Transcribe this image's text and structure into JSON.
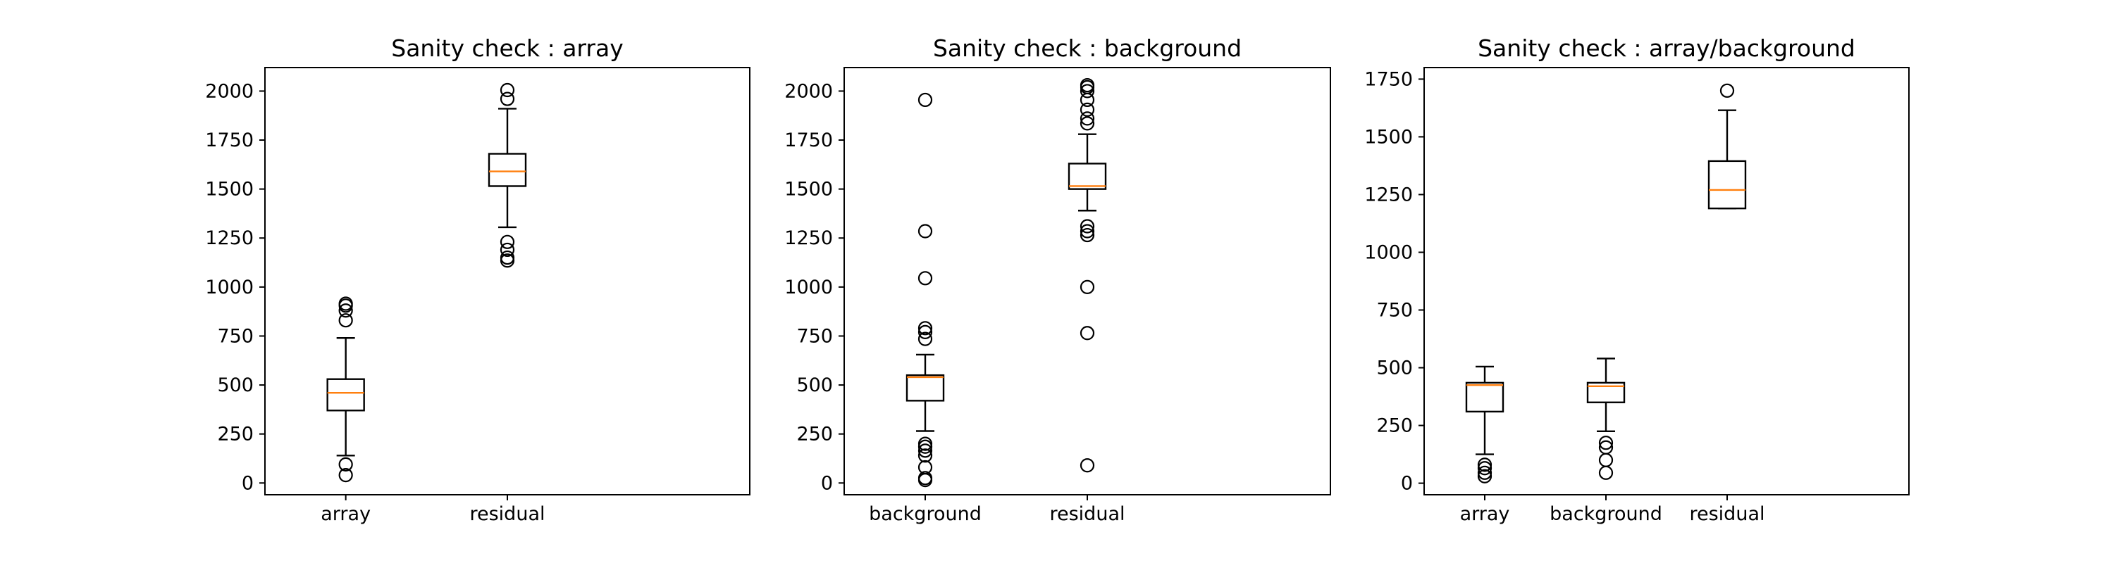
{
  "chart_data": [
    {
      "type": "box",
      "title": "Sanity check : array",
      "ylim": [
        -60,
        2120
      ],
      "yticks": [
        0,
        250,
        500,
        750,
        1000,
        1250,
        1500,
        1750,
        2000
      ],
      "categories": [
        "array",
        "residual"
      ],
      "boxes": [
        {
          "label": "array",
          "whislo": 140,
          "q1": 370,
          "med": 460,
          "q3": 530,
          "whishi": 740,
          "fliers": [
            40,
            95,
            830,
            880,
            905,
            915
          ]
        },
        {
          "label": "residual",
          "whislo": 1305,
          "q1": 1515,
          "med": 1590,
          "q3": 1680,
          "whishi": 1910,
          "fliers": [
            1135,
            1150,
            1190,
            1230,
            1960,
            2005
          ]
        }
      ]
    },
    {
      "type": "box",
      "title": "Sanity check : background",
      "ylim": [
        -60,
        2120
      ],
      "yticks": [
        0,
        250,
        500,
        750,
        1000,
        1250,
        1500,
        1750,
        2000
      ],
      "categories": [
        "background",
        "residual"
      ],
      "boxes": [
        {
          "label": "background",
          "whislo": 265,
          "q1": 420,
          "med": 540,
          "q3": 550,
          "whishi": 655,
          "fliers": [
            15,
            25,
            80,
            140,
            165,
            185,
            200,
            735,
            770,
            790,
            1045,
            1285,
            1955
          ]
        },
        {
          "label": "residual",
          "whislo": 1390,
          "q1": 1500,
          "med": 1515,
          "q3": 1630,
          "whishi": 1780,
          "fliers": [
            90,
            765,
            1000,
            1265,
            1285,
            1310,
            1835,
            1860,
            1905,
            1955,
            2000,
            2020,
            2030
          ]
        }
      ]
    },
    {
      "type": "box",
      "title": "Sanity check : array/background",
      "ylim": [
        -50,
        1800
      ],
      "yticks": [
        0,
        250,
        500,
        750,
        1000,
        1250,
        1500,
        1750
      ],
      "categories": [
        "array",
        "background",
        "residual"
      ],
      "boxes": [
        {
          "label": "array",
          "whislo": 125,
          "q1": 310,
          "med": 425,
          "q3": 435,
          "whishi": 505,
          "fliers": [
            30,
            45,
            65,
            80
          ]
        },
        {
          "label": "background",
          "whislo": 225,
          "q1": 350,
          "med": 420,
          "q3": 435,
          "whishi": 540,
          "fliers": [
            45,
            100,
            155,
            175
          ]
        },
        {
          "label": "residual",
          "whislo": 1190,
          "q1": 1190,
          "med": 1270,
          "q3": 1395,
          "whishi": 1615,
          "fliers": [
            1700
          ]
        }
      ]
    }
  ]
}
